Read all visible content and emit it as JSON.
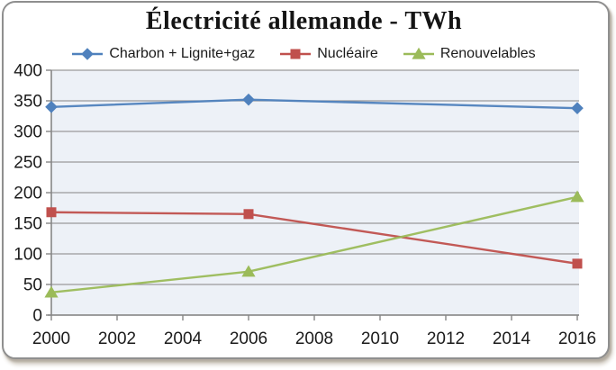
{
  "chart_data": {
    "type": "line",
    "title": "Électricité allemande - TWh",
    "xlabel": "",
    "ylabel": "",
    "x": [
      2000,
      2006,
      2016
    ],
    "xticks": [
      2000,
      2002,
      2004,
      2006,
      2008,
      2010,
      2012,
      2014,
      2016
    ],
    "yticks": [
      0,
      50,
      100,
      150,
      200,
      250,
      300,
      350,
      400
    ],
    "xlim": [
      2000,
      2016
    ],
    "ylim": [
      0,
      400
    ],
    "grid": true,
    "legend_position": "top",
    "series": [
      {
        "name": "Charbon + Lignite+gaz",
        "color": "#4F81BD",
        "marker": "diamond",
        "values": [
          340,
          352,
          338
        ]
      },
      {
        "name": "Nucléaire",
        "color": "#C0504D",
        "marker": "square",
        "values": [
          168,
          165,
          84
        ]
      },
      {
        "name": "Renouvelables",
        "color": "#9BBB59",
        "marker": "triangle",
        "values": [
          37,
          71,
          193
        ]
      }
    ],
    "colors": {
      "plot_bg": "#edf1f7",
      "gridline": "#9a9a9a",
      "axis": "#868686",
      "text": "#1b1b1b",
      "frame_border": "#8f8f8f",
      "title_text": "#141414"
    }
  }
}
